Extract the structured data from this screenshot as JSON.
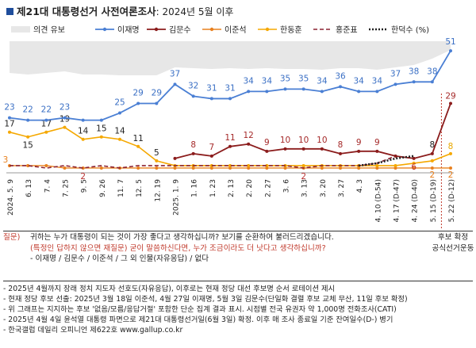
{
  "title": {
    "main": "제21대 대통령선거 사전여론조사",
    "sub": ": 2024년 5월 이후"
  },
  "chart_data": {
    "type": "line",
    "x": [
      "2024. 5. 9",
      "6. 13",
      "7. 4",
      "7. 25",
      "9. 5",
      "9. 26",
      "11. 7",
      "12. 5",
      "12. 19",
      "2025. 1. 9",
      "1. 16",
      "1. 23",
      "2. 13",
      "2. 20",
      "2. 27",
      "3. 6",
      "3. 13",
      "3. 20",
      "3. 27",
      "4. 3",
      "4. 10 (D-54)",
      "4. 17 (D-47)",
      "4. 24 (D-40)",
      "5. 15 (D-19)",
      "5. 22 (D-12)"
    ],
    "legend": [
      "의견 유보",
      "이재명",
      "김문수",
      "이준석",
      "한동훈",
      "홍준표",
      "한덕수 (%)"
    ],
    "series": [
      {
        "name": "이재명",
        "color": "#4a7fd4",
        "values": [
          23,
          22,
          22,
          23,
          22,
          22,
          25,
          29,
          29,
          37,
          32,
          31,
          31,
          34,
          34,
          35,
          35,
          34,
          36,
          34,
          34,
          37,
          38,
          38,
          51
        ],
        "labels": {
          "0": 23,
          "1": 22,
          "2": 22,
          "3": 23,
          "6": 25,
          "7": 29,
          "8": 29,
          "9": 37,
          "10": 32,
          "11": 31,
          "12": 31,
          "13": 34,
          "14": 34,
          "15": 35,
          "16": 35,
          "17": 34,
          "18": 36,
          "19": 34,
          "20": 34,
          "21": 37,
          "22": 38,
          "23": 38,
          "24": 51
        }
      },
      {
        "name": "김문수",
        "color": "#8b1c1c",
        "values": [
          null,
          null,
          null,
          null,
          null,
          null,
          null,
          null,
          null,
          6,
          8,
          7,
          11,
          12,
          9,
          10,
          10,
          10,
          8,
          9,
          9,
          7,
          6,
          8,
          29
        ],
        "labels": {
          "10": 8,
          "11": 7,
          "12": 11,
          "13": 12,
          "14": 9,
          "15": 10,
          "16": 10,
          "17": 10,
          "18": 8,
          "19": 9,
          "20": 9,
          "23": 8,
          "24": 29
        }
      },
      {
        "name": "한동훈",
        "color": "#f5a800",
        "values": [
          17,
          15,
          17,
          19,
          14,
          15,
          14,
          11,
          5,
          3,
          3,
          3,
          3,
          3,
          3,
          3,
          3,
          3,
          3,
          3,
          3,
          3,
          4,
          5,
          8
        ],
        "labels": {
          "0": 17,
          "1": 15,
          "2": 17,
          "3": 19,
          "4": 14,
          "5": 15,
          "6": 14,
          "7": 11,
          "8": 5,
          "24": 8
        }
      },
      {
        "name": "이준석",
        "color": "#e8801e",
        "values": [
          3,
          3,
          3,
          2,
          2,
          2,
          2,
          2,
          2,
          2,
          2,
          2,
          2,
          2,
          2,
          2,
          2,
          2,
          2,
          2,
          2,
          2,
          2,
          2,
          2
        ],
        "labels": {
          "0": 3,
          "23": 2,
          "24": 2
        }
      },
      {
        "name": "홍준표",
        "color": "#8b2232",
        "values": [
          3,
          3,
          2,
          3,
          2,
          3,
          2,
          3,
          3,
          3,
          3,
          3,
          3,
          3,
          3,
          3,
          2,
          3,
          3,
          3,
          4,
          7,
          6,
          null,
          null
        ],
        "labels": {
          "4": 2,
          "16": 2,
          "22": 6
        }
      },
      {
        "name": "한덕수",
        "color": "#222222",
        "values": [
          null,
          null,
          null,
          null,
          null,
          null,
          null,
          null,
          null,
          null,
          null,
          null,
          null,
          null,
          null,
          null,
          null,
          null,
          null,
          3,
          4,
          6,
          7,
          null,
          null
        ],
        "labels": {}
      }
    ],
    "reserve": {
      "name": "의견 유보",
      "color": "#e7e7e7",
      "values": [
        40,
        42,
        40,
        38,
        42,
        42,
        43,
        43,
        43,
        33,
        34,
        35,
        34,
        35,
        34,
        35,
        35,
        36,
        34,
        34,
        36,
        33,
        30,
        22,
        11
      ]
    },
    "ylim": [
      0,
      55
    ],
    "xlabel": "",
    "ylabel": "",
    "vertical_marker": {
      "between": [
        23,
        24
      ],
      "label": "후보 확정"
    },
    "legend_position": "top"
  },
  "question": {
    "label": "질문)",
    "line1": "귀하는 누가 대통령이 되는 것이 가장 좋다고 생각하십니까? 보기를 순환하여 불러드리겠습니다.",
    "line2": "(특정인 답하지 않으면 재질문) 굳이 말씀하신다면, 누가 조금이라도 더 낫다고 생각하십니까?",
    "line3": "- 이재명 / 김문수 / 이준석 / 그 외 인물(자유응답) / 없다"
  },
  "side_note": {
    "line1": "후보 확정",
    "line2": "공식선거운동"
  },
  "notes": [
    "- 2025년 4월까지 장래 정치 지도자 선호도(자유응답), 이후로는 현재 정당 대선 후보명 순서 로테이션 제시",
    "- 현재 정당 후보 선출: 2025년 3월 18일 이준석, 4월 27일 이재명, 5월 3일 김문수(단일화 결렬 후보 교체 무산, 11일 후보 확정)",
    "- 위 그래프는 지지하는 후보 '없음/모름/응답거절' 포함한 단순 집계 결과 표시. 시점별 전국 유권자 약 1,000명 전화조사(CATI)",
    "- 2025년 4월 4일 윤석열 대통령 파면으로 제21대 대통령선거일(6월 3일) 확정. 이후 매 조사 종료일 기준 잔여일수(D-) 병기",
    "- 한국갤럽 데일리 오피니언 제622호 www.gallup.co.kr"
  ]
}
